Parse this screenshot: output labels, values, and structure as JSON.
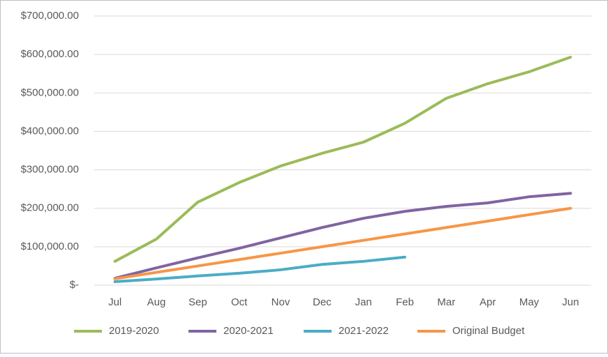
{
  "chart_data": {
    "type": "line",
    "categories": [
      "Jul",
      "Aug",
      "Sep",
      "Oct",
      "Nov",
      "Dec",
      "Jan",
      "Feb",
      "Mar",
      "Apr",
      "May",
      "Jun"
    ],
    "series": [
      {
        "name": "2019-2020",
        "color": "#9bbb59",
        "values": [
          62000,
          120000,
          216000,
          267000,
          310000,
          343000,
          372000,
          421000,
          486000,
          524000,
          555000,
          593000
        ]
      },
      {
        "name": "2020-2021",
        "color": "#8064a2",
        "values": [
          18000,
          45000,
          71000,
          96000,
          123000,
          150000,
          174000,
          192000,
          205000,
          214000,
          230000,
          239000
        ]
      },
      {
        "name": "2021-2022",
        "color": "#4bacc6",
        "values": [
          9000,
          16000,
          24000,
          31000,
          40000,
          54000,
          62000,
          73000,
          null,
          null,
          null,
          null
        ]
      },
      {
        "name": "Original Budget",
        "color": "#f79646",
        "values": [
          16667,
          33333,
          50000,
          66667,
          83333,
          100000,
          116667,
          133333,
          150000,
          166667,
          183333,
          200000
        ]
      }
    ],
    "ylim": [
      0,
      700000
    ],
    "yticks": [
      {
        "value": 0,
        "label": "$-"
      },
      {
        "value": 100000,
        "label": "$100,000.00"
      },
      {
        "value": 200000,
        "label": "$200,000.00"
      },
      {
        "value": 300000,
        "label": "$300,000.00"
      },
      {
        "value": 400000,
        "label": "$400,000.00"
      },
      {
        "value": 500000,
        "label": "$500,000.00"
      },
      {
        "value": 600000,
        "label": "$600,000.00"
      },
      {
        "value": 700000,
        "label": "$700,000.00"
      }
    ],
    "grid": true,
    "legend": "bottom"
  }
}
